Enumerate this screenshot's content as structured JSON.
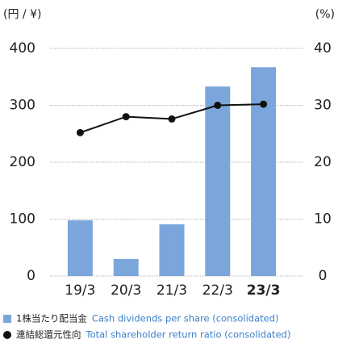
{
  "chart_data": {
    "type": "bar_line",
    "y_label": "(円 / ¥)",
    "y2_label": "(%)",
    "categories": [
      "19/3",
      "20/3",
      "21/3",
      "22/3",
      "23/3"
    ],
    "series": [
      {
        "name": "1株当たり配当金",
        "name_en": "Cash dividends per share (consolidated)",
        "type": "bar",
        "color": "#7aa6dc",
        "values": [
          98,
          30,
          91,
          333,
          367
        ]
      },
      {
        "name": "連結総還元性向",
        "name_en": "Total shareholder return ratio (consolidated)",
        "type": "line",
        "axis": "y2",
        "color": "#111111",
        "values": [
          25.2,
          28,
          27.6,
          30,
          30.2
        ]
      }
    ],
    "ylim": [
      0,
      400
    ],
    "yticks": [
      0,
      100,
      200,
      300,
      400
    ],
    "y2lim": [
      0,
      40
    ],
    "y2ticks": [
      0,
      10,
      20,
      30,
      40
    ],
    "grid": true
  }
}
